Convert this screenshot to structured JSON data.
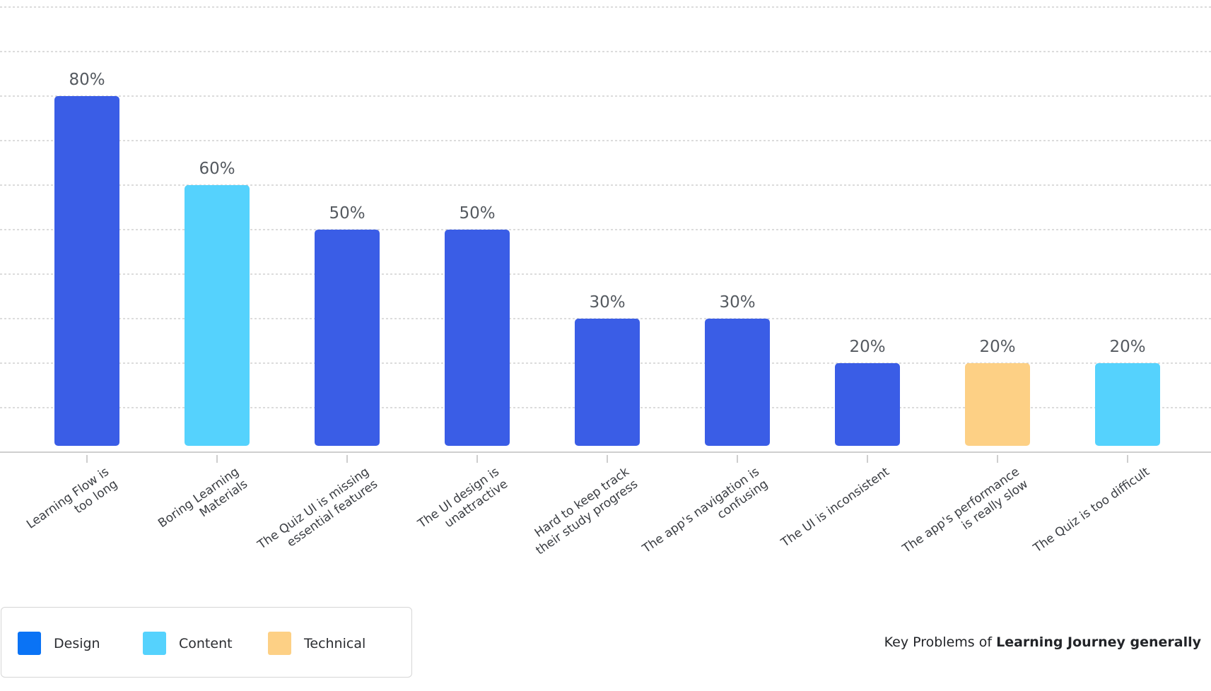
{
  "chart_data": {
    "type": "bar",
    "title": "",
    "xlabel": "",
    "ylabel": "",
    "ylim": [
      0,
      100
    ],
    "grid": true,
    "categories": [
      [
        "Learning Flow is",
        "too long"
      ],
      [
        "Boring Learning",
        "Materials"
      ],
      [
        "The Quiz UI is missing",
        "essential features"
      ],
      [
        "The UI design is",
        "unattractive"
      ],
      [
        "Hard to keep track",
        "their study progress"
      ],
      [
        "The app's navigation is",
        "confusing"
      ],
      [
        "The UI is inconsistent"
      ],
      [
        "The app's performance",
        "is really slow"
      ],
      [
        "The Quiz is too difficult"
      ]
    ],
    "values": [
      80,
      60,
      50,
      50,
      30,
      30,
      20,
      20,
      20
    ],
    "value_labels": [
      "80%",
      "60%",
      "50%",
      "50%",
      "30%",
      "30%",
      "20%",
      "20%",
      "20%"
    ],
    "groups": [
      "Design",
      "Content",
      "Design",
      "Design",
      "Design",
      "Design",
      "Design",
      "Technical",
      "Content"
    ]
  },
  "legend": {
    "position": "bottom-left",
    "items": [
      {
        "label": "Design",
        "color": "#0a73f5"
      },
      {
        "label": "Content",
        "color": "#55d2fd"
      },
      {
        "label": "Technical",
        "color": "#fdd085"
      }
    ]
  },
  "colors": {
    "Design": "#3a5de6",
    "Content": "#55d2fd",
    "Technical": "#fdd085"
  },
  "caption": {
    "prefix": "Key Problems of",
    "emphasis": "Learning Journey generally"
  }
}
